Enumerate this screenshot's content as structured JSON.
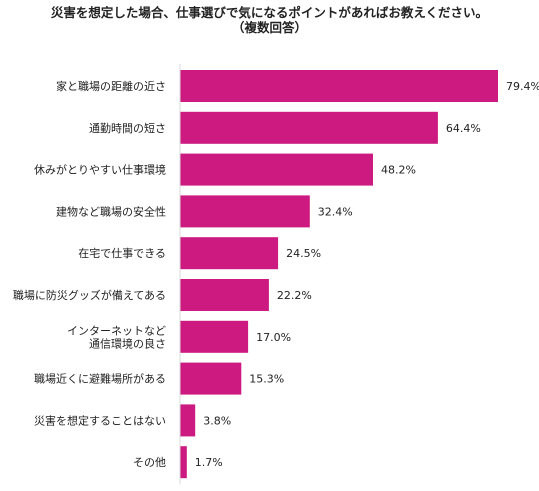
{
  "chart_data": {
    "type": "bar",
    "orientation": "horizontal",
    "title": "災害を想定した場合、仕事選びで気になるポイントがあればお教えください。",
    "subtitle": "（複数回答）",
    "unit": "%",
    "categories": [
      [
        "家と職場の距離の近さ"
      ],
      [
        "通勤時間の短さ"
      ],
      [
        "休みがとりやすい仕事環境"
      ],
      [
        "建物など職場の安全性"
      ],
      [
        "在宅で仕事できる"
      ],
      [
        "職場に防災グッズが備えてある"
      ],
      [
        "インターネットなど",
        "通信環境の良さ"
      ],
      [
        "職場近くに避難場所がある"
      ],
      [
        "災害を想定することはない"
      ],
      [
        "その他"
      ]
    ],
    "values": [
      79.4,
      64.4,
      48.2,
      32.4,
      24.5,
      22.2,
      17.0,
      15.3,
      3.8,
      1.7
    ],
    "value_labels": [
      "79.4%",
      "64.4%",
      "48.2%",
      "32.4%",
      "24.5%",
      "22.2%",
      "17.0%",
      "15.3%",
      "3.8%",
      "1.7%"
    ],
    "xlim": [
      0,
      79.4
    ],
    "grid": false,
    "legend": "none",
    "bar_color": "#cc1a80"
  }
}
